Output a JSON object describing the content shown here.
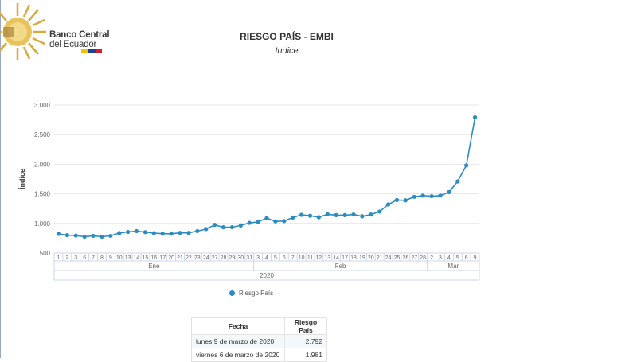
{
  "logo": {
    "name_line1": "Banco Central",
    "name_line2": "del Ecuador"
  },
  "colors": {
    "series": "#2b8cc4",
    "grid": "#e6e6e6",
    "axis": "#ccd6eb"
  },
  "chart_data": {
    "type": "line",
    "title": "RIESGO PAÍS - EMBI",
    "subtitle": "Indice",
    "ylabel": "Índice",
    "ylim": [
      500,
      3000
    ],
    "yticks": [
      500,
      1000,
      1500,
      2000,
      2500,
      3000
    ],
    "ytick_labels": [
      "500",
      "1.000",
      "1.500",
      "2.000",
      "2.500",
      "3.000"
    ],
    "grid": true,
    "legend_position": "bottom-center",
    "days": [
      "1",
      "2",
      "3",
      "6",
      "7",
      "8",
      "9",
      "10",
      "13",
      "14",
      "15",
      "16",
      "17",
      "20",
      "21",
      "22",
      "23",
      "24",
      "27",
      "28",
      "29",
      "30",
      "31",
      "3",
      "4",
      "5",
      "6",
      "7",
      "10",
      "11",
      "12",
      "13",
      "14",
      "17",
      "18",
      "19",
      "20",
      "21",
      "24",
      "25",
      "26",
      "27",
      "28",
      "2",
      "3",
      "4",
      "5",
      "6",
      "9"
    ],
    "months": [
      {
        "label": "Ene",
        "count": 23
      },
      {
        "label": "Feb",
        "count": 20
      },
      {
        "label": "Mar",
        "count": 6
      }
    ],
    "year": "2020",
    "series": [
      {
        "name": "Riesgo País",
        "values": [
          823,
          801,
          795,
          775,
          790,
          775,
          790,
          838,
          856,
          870,
          852,
          836,
          826,
          825,
          840,
          840,
          870,
          905,
          975,
          935,
          936,
          965,
          1010,
          1025,
          1090,
          1035,
          1040,
          1100,
          1145,
          1130,
          1105,
          1155,
          1140,
          1140,
          1150,
          1120,
          1150,
          1200,
          1320,
          1395,
          1390,
          1450,
          1470,
          1460,
          1470,
          1530,
          1710,
          1981,
          2792
        ]
      }
    ]
  },
  "legend": {
    "label": "Riesgo País"
  },
  "table": {
    "headers": [
      "Fecha",
      "Riesgo País"
    ],
    "rows": [
      [
        "lunes 9 de marzo de 2020",
        "2.792"
      ],
      [
        "viernes 6 de marzo de 2020",
        "1.981"
      ]
    ]
  }
}
